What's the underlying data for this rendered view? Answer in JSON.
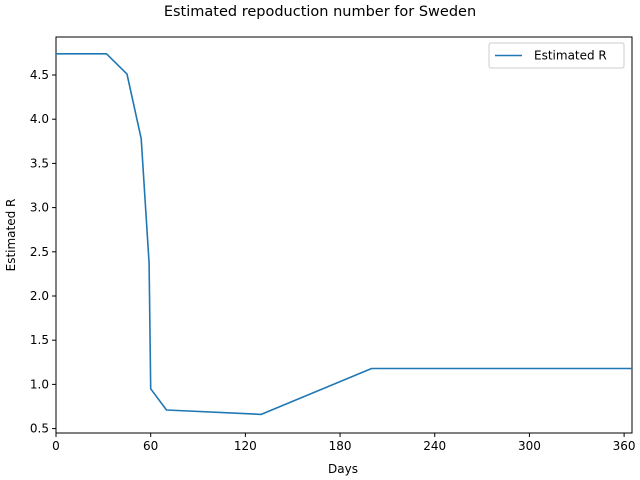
{
  "chart_data": {
    "type": "line",
    "title": "Estimated repoduction number for Sweden",
    "xlabel": "Days",
    "ylabel": "Estimated R",
    "xlim": [
      0,
      365
    ],
    "ylim": [
      0.45,
      4.93
    ],
    "xticks": [
      0,
      60,
      120,
      180,
      240,
      300,
      360
    ],
    "yticks": [
      0.5,
      1.0,
      1.5,
      2.0,
      2.5,
      3.0,
      3.5,
      4.0,
      4.5
    ],
    "ytick_labels": [
      "0.5",
      "1.0",
      "1.5",
      "2.0",
      "2.5",
      "3.0",
      "3.5",
      "4.0",
      "4.5"
    ],
    "legend_position": "top-right",
    "grid": false,
    "color": "#1f77b4",
    "series": [
      {
        "name": "Estimated R",
        "x": [
          0,
          32,
          45,
          54,
          59,
          60,
          70,
          130,
          200,
          365
        ],
        "y": [
          4.74,
          4.74,
          4.51,
          3.78,
          2.37,
          0.95,
          0.71,
          0.66,
          1.18,
          1.18
        ]
      }
    ]
  }
}
